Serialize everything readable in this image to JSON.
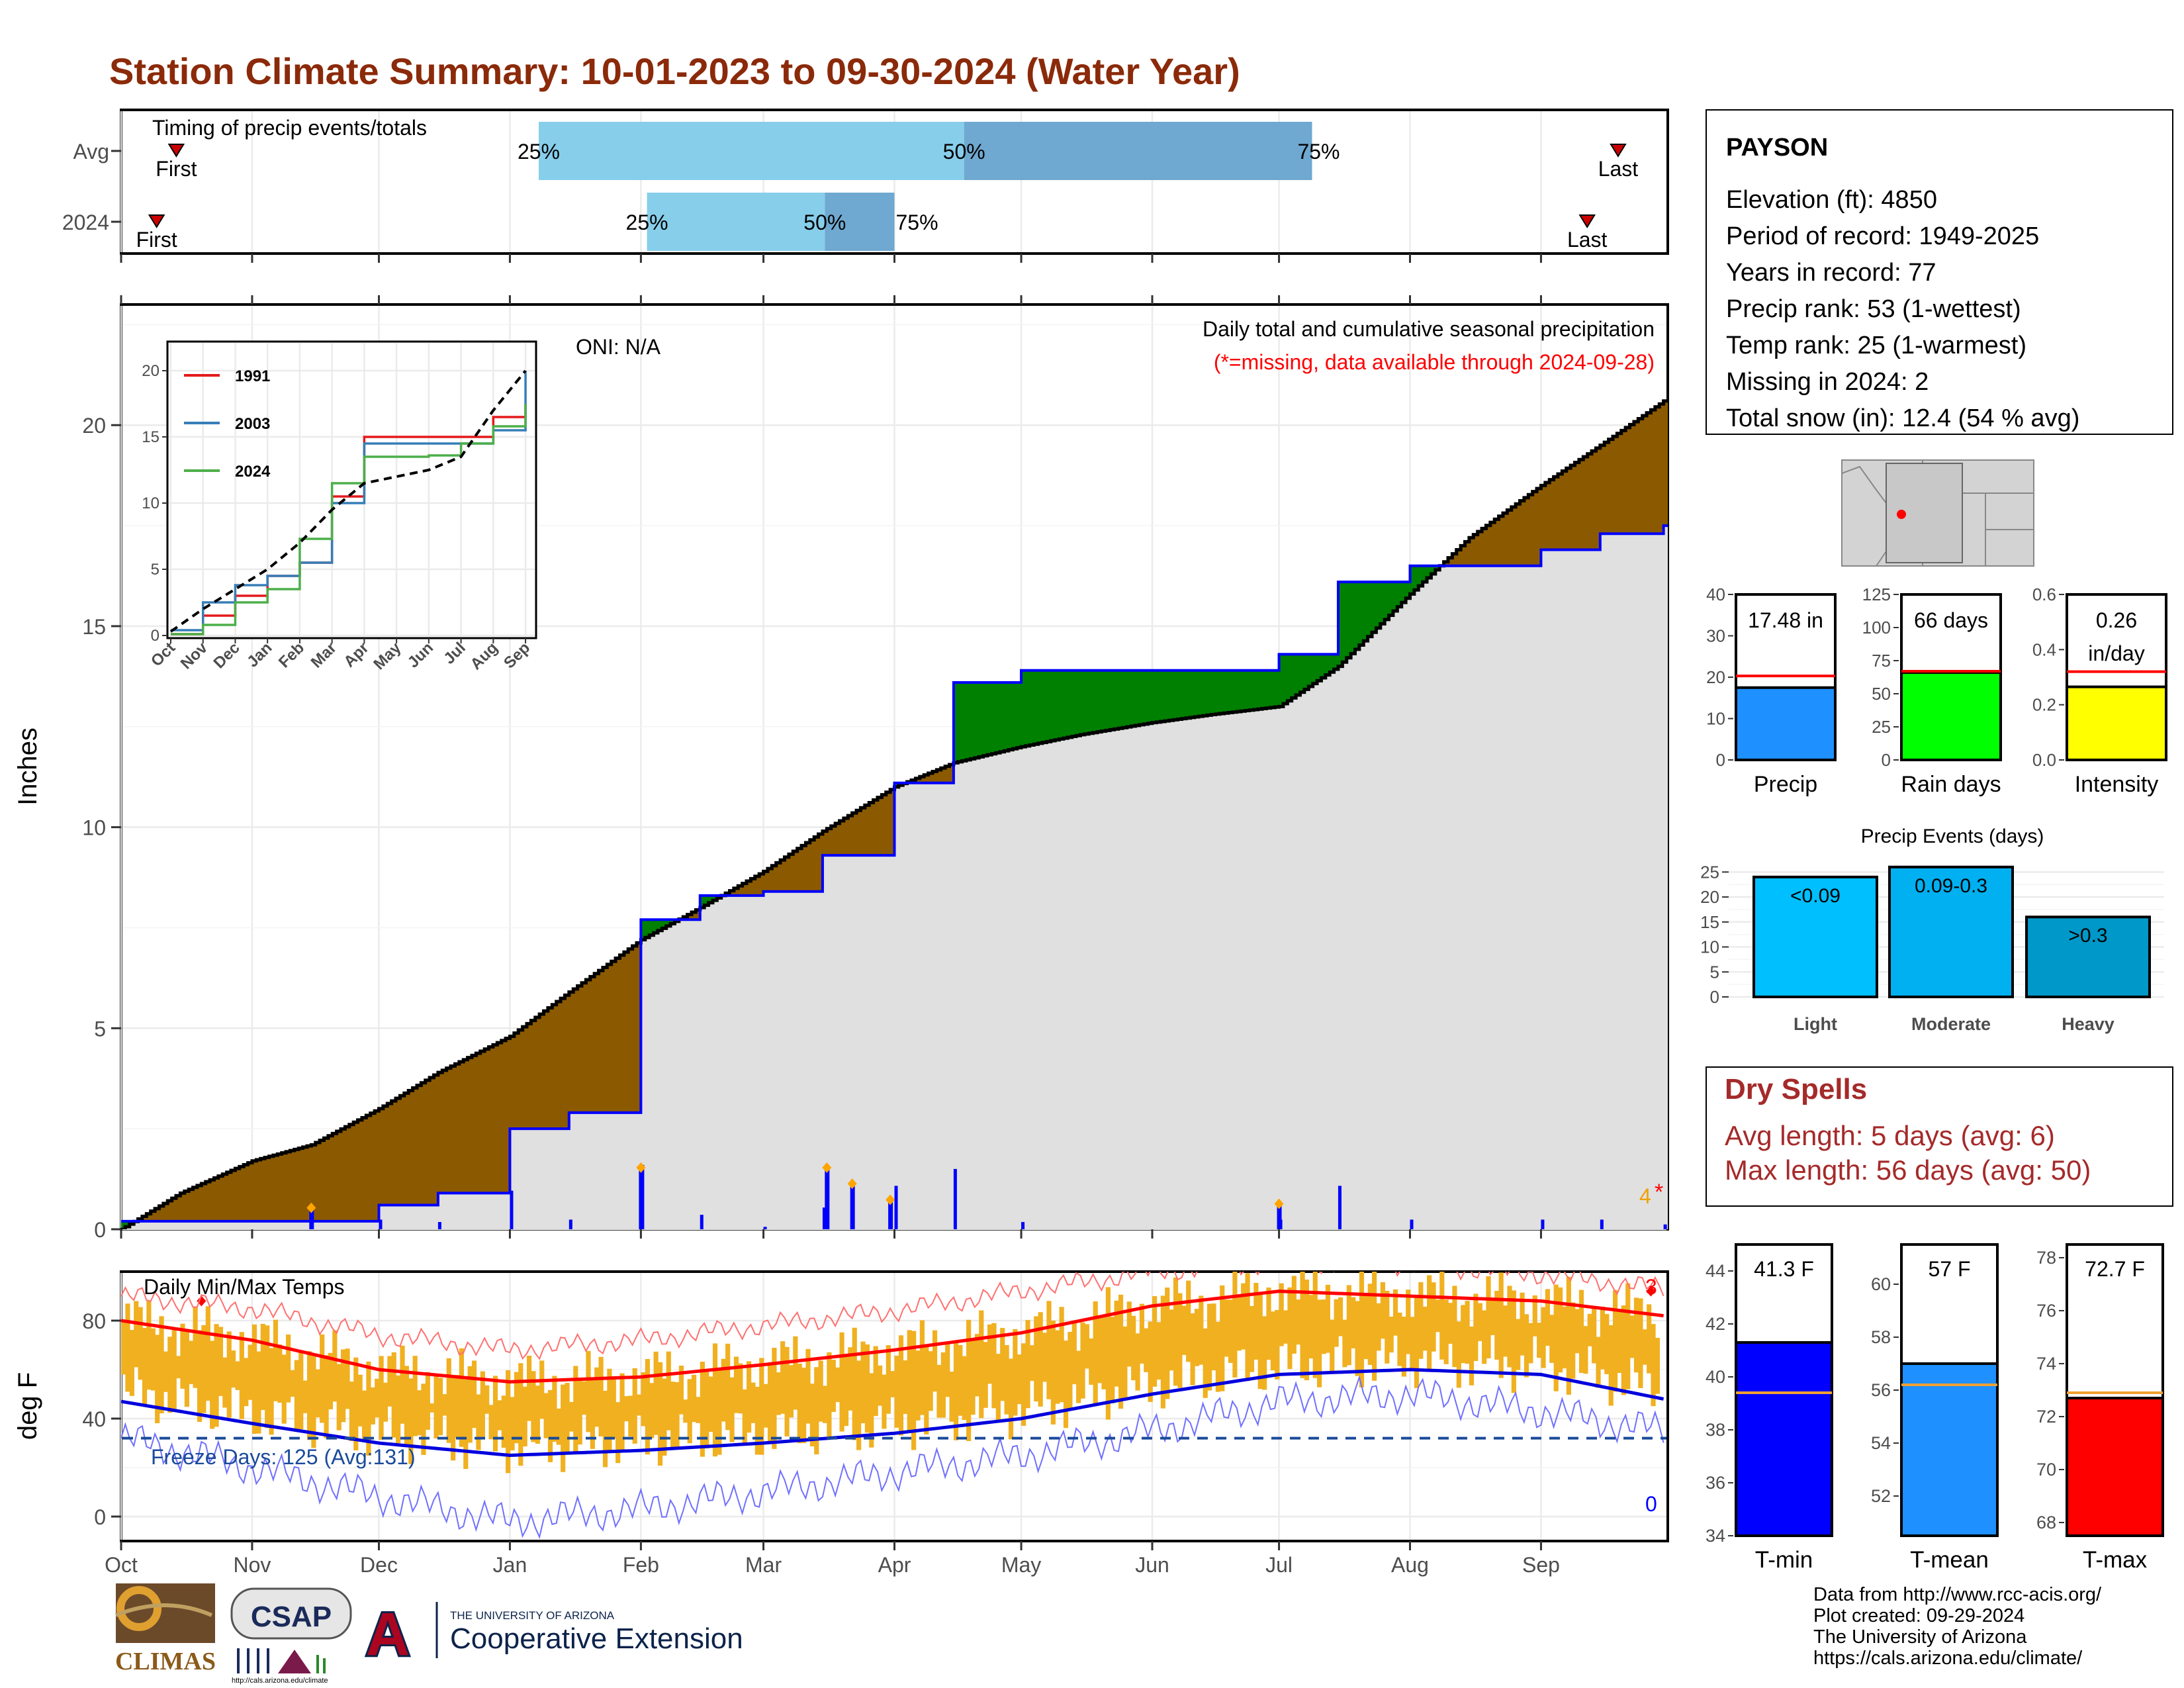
{
  "title": "Station Climate Summary: 10-01-2023 to 09-30-2024 (Water Year)",
  "colors": {
    "title": "#8b2a0a",
    "brown": "#8b5a00",
    "green": "#008000",
    "blue_line": "#0000ff",
    "gray_fill": "#e0e0e0",
    "light_blue": "#87ceeb",
    "mid_blue": "#6fa8d0",
    "orange": "#f0b020",
    "red": "#ff0000",
    "dry": "#a52a2a"
  },
  "timing": {
    "title": "Timing of precip events/totals",
    "rows": [
      {
        "label": "Avg",
        "first": "First",
        "last": "Last",
        "p25": "25%",
        "p50": "50%",
        "p75": "75%",
        "v_first": 0.01,
        "v25": 0.27,
        "v50": 0.545,
        "v75": 0.77,
        "v_last": 0.985
      },
      {
        "label": "2024",
        "first": "First",
        "last": "Last",
        "p25": "25%",
        "p50": "50%",
        "p75": "75%",
        "v_first": 0.005,
        "v25": 0.34,
        "v50": 0.455,
        "v75": 0.5,
        "v_last": 0.965
      }
    ]
  },
  "precip_panel": {
    "ylabel": "Inches",
    "header": "Daily total and cumulative seasonal precipitation",
    "missing_note": "(*=missing, data available through 2024-09-28)",
    "oni": "ONI: N/A",
    "missing_count": "4",
    "missing_mark": "*"
  },
  "temp_panel": {
    "ylabel": "deg F",
    "title": "Daily Min/Max Temps",
    "freeze": "Freeze Days: 125 (Avg:131)",
    "record_high_count": "3",
    "record_low_count": "0"
  },
  "months": [
    "Oct",
    "Nov",
    "Dec",
    "Jan",
    "Feb",
    "Mar",
    "Apr",
    "May",
    "Jun",
    "Jul",
    "Aug",
    "Sep"
  ],
  "station": {
    "name": "PAYSON",
    "lines": [
      "Elevation (ft): 4850",
      "Period of record: 1949-2025",
      "Years in record: 77",
      "Precip rank: 53 (1-wettest)",
      "Temp rank: 25 (1-warmest)",
      "Missing in 2024: 2",
      "Total snow (in): 12.4 (54 % avg)"
    ]
  },
  "bar_stats": [
    {
      "label": "Precip",
      "value_label": "17.48 in",
      "value": 17.48,
      "avg": 20.3,
      "ymax": 40,
      "ticks": [
        "0",
        "10",
        "20",
        "30",
        "40"
      ],
      "color": "#1e90ff"
    },
    {
      "label": "Rain days",
      "value_label": "66 days",
      "value": 66,
      "avg": 67,
      "ymax": 125,
      "ticks": [
        "0",
        "25",
        "50",
        "75",
        "100",
        "125"
      ],
      "color": "#00ff00"
    },
    {
      "label": "Intensity",
      "value_label": "0.26",
      "value_label2": "in/day",
      "value": 0.265,
      "avg": 0.32,
      "ymax": 0.6,
      "ticks": [
        "0.0",
        "0.2",
        "0.4",
        "0.6"
      ],
      "color": "#ffff00"
    }
  ],
  "events": {
    "title": "Precip Events (days)",
    "ticks": [
      "0",
      "5",
      "10",
      "15",
      "20",
      "25"
    ],
    "bars": [
      {
        "label": "Light",
        "value": 24,
        "text": "<0.09",
        "color": "#00bfff"
      },
      {
        "label": "Moderate",
        "value": 26,
        "text": "0.09-0.3",
        "color": "#00b0f0"
      },
      {
        "label": "Heavy",
        "value": 16,
        "text": ">0.3",
        "color": "#0098c8"
      }
    ]
  },
  "dry_spells": {
    "title": "Dry Spells",
    "avg": "Avg length: 5 days (avg: 6)",
    "max": "Max length: 56 days (avg: 50)"
  },
  "temp_stats": [
    {
      "label": "T-min",
      "value_label": "41.3 F",
      "value": 41.3,
      "avg": 39.4,
      "ymin": 34,
      "ymax": 45,
      "ticks": [
        "34",
        "36",
        "38",
        "40",
        "42",
        "44"
      ],
      "tvals": [
        34,
        36,
        38,
        40,
        42,
        44
      ],
      "color": "#0000ff"
    },
    {
      "label": "T-mean",
      "value_label": "57 F",
      "value": 57.0,
      "avg": 56.2,
      "ymin": 50.5,
      "ymax": 61.5,
      "ticks": [
        "52",
        "54",
        "56",
        "58",
        "60"
      ],
      "tvals": [
        52,
        54,
        56,
        58,
        60
      ],
      "color": "#1e90ff"
    },
    {
      "label": "T-max",
      "value_label": "72.7 F",
      "value": 72.7,
      "avg": 72.9,
      "ymin": 67.5,
      "ymax": 78.5,
      "ticks": [
        "68",
        "70",
        "72",
        "74",
        "76",
        "78"
      ],
      "tvals": [
        68,
        70,
        72,
        74,
        76,
        78
      ],
      "color": "#ff0000"
    }
  ],
  "credits": [
    "Data from http://www.rcc-acis.org/",
    "Plot created: 09-29-2024",
    "The University of Arizona",
    "https://cals.arizona.edu/climate/"
  ],
  "logos": {
    "climas": "CLIMAS",
    "csap": "CSAP",
    "csap_url": "http://cals.arizona.edu/climate",
    "ua_small": "THE UNIVERSITY OF ARIZONA",
    "ua_big": "Cooperative Extension",
    "ua_letter": "A"
  },
  "chart_data": [
    {
      "type": "area",
      "title": "Daily total and cumulative seasonal precipitation",
      "ylabel": "Inches",
      "ylim": [
        0,
        23
      ],
      "yticks": [
        0,
        5,
        10,
        15,
        20
      ],
      "x": [
        "10-01",
        "10-15",
        "11-01",
        "11-15",
        "12-01",
        "12-15",
        "01-01",
        "01-15",
        "02-01",
        "02-15",
        "03-01",
        "03-15",
        "04-01",
        "04-15",
        "05-01",
        "05-15",
        "06-01",
        "06-15",
        "07-01",
        "07-15",
        "08-01",
        "08-15",
        "09-01",
        "09-15",
        "09-30"
      ],
      "series": [
        {
          "values": [
            0.0,
            0.9,
            1.7,
            2.1,
            3.0,
            3.9,
            4.8,
            5.9,
            7.2,
            8.0,
            8.9,
            9.9,
            11.0,
            11.6,
            12.0,
            12.3,
            12.6,
            12.8,
            13.0,
            14.0,
            15.8,
            17.2,
            18.5,
            19.5,
            20.6
          ]
        },
        {
          "values": [
            0.2,
            0.2,
            0.2,
            0.2,
            0.6,
            0.9,
            2.5,
            2.9,
            7.7,
            8.3,
            8.4,
            9.3,
            11.1,
            13.6,
            13.9,
            13.9,
            13.9,
            13.9,
            14.3,
            16.1,
            16.5,
            16.5,
            16.9,
            17.3,
            17.5
          ]
        }
      ],
      "daily_peaks": [
        {
          "x": "11-15",
          "value": 0.5
        },
        {
          "x": "02-01",
          "value": 1.5
        },
        {
          "x": "03-22",
          "value": 1.1
        },
        {
          "x": "03-31",
          "value": 0.7
        },
        {
          "x": "03-16",
          "value": 1.5
        },
        {
          "x": "07-01",
          "value": 0.6
        }
      ]
    },
    {
      "type": "line",
      "title": "",
      "ylim": [
        0,
        22
      ],
      "yticks": [
        0,
        5,
        10,
        15,
        20
      ],
      "categories": [
        "Oct",
        "Nov",
        "Dec",
        "Jan",
        "Feb",
        "Mar",
        "Apr",
        "May",
        "Jun",
        "Jul",
        "Aug",
        "Sep"
      ],
      "series": [
        {
          "name": "1991",
          "values": [
            0.1,
            1.5,
            3.0,
            4.5,
            5.5,
            10.5,
            15.0,
            15.0,
            15.0,
            15.0,
            16.5,
            17.5
          ]
        },
        {
          "name": "2003",
          "values": [
            0.4,
            2.5,
            3.8,
            4.5,
            5.5,
            10.0,
            14.5,
            14.5,
            14.5,
            14.5,
            15.5,
            20.0
          ]
        },
        {
          "name": "2024",
          "values": [
            0.1,
            0.8,
            2.5,
            3.5,
            7.3,
            11.5,
            13.5,
            13.5,
            13.6,
            14.5,
            15.8,
            17.5
          ]
        },
        {
          "values": [
            0.3,
            2.0,
            3.5,
            5.0,
            7.0,
            9.5,
            11.5,
            12.0,
            12.5,
            13.5,
            17.0,
            20.0
          ]
        }
      ]
    },
    {
      "type": "area",
      "title": "Daily Min/Max Temps",
      "ylabel": "deg F",
      "ylim": [
        -10,
        100
      ],
      "yticks": [
        0,
        40,
        80
      ],
      "x": [
        "10-01",
        "11-01",
        "12-01",
        "01-01",
        "02-01",
        "03-01",
        "04-01",
        "05-01",
        "06-01",
        "07-01",
        "08-01",
        "09-01",
        "09-30"
      ],
      "series": [
        {
          "name": "avg max",
          "values": [
            80,
            72,
            60,
            55,
            57,
            62,
            68,
            75,
            86,
            92,
            90,
            88,
            82
          ]
        },
        {
          "name": "avg min",
          "values": [
            47,
            38,
            30,
            25,
            27,
            30,
            34,
            40,
            50,
            58,
            60,
            58,
            48
          ]
        },
        {
          "name": "record high",
          "values": [
            90,
            85,
            74,
            68,
            72,
            78,
            84,
            92,
            100,
            104,
            103,
            99,
            93
          ]
        },
        {
          "name": "record low",
          "values": [
            32,
            20,
            8,
            -2,
            3,
            10,
            18,
            25,
            35,
            47,
            50,
            43,
            35
          ]
        }
      ],
      "freeze_line": 32
    }
  ]
}
